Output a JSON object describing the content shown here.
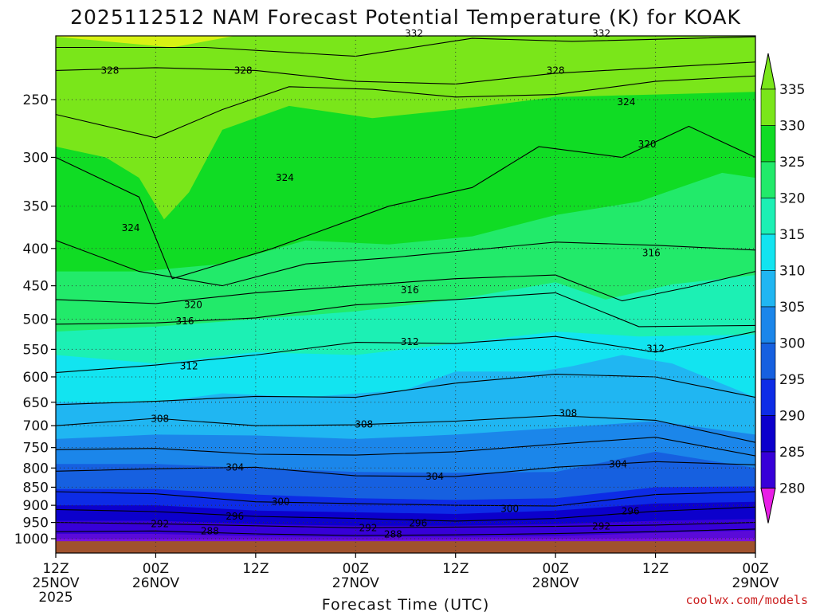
{
  "title": "2025112512 NAM Forecast Potential Temperature (K) for KOAK",
  "credit": "coolwx.com/models",
  "chart_data": {
    "type": "heatmap",
    "title": "2025112512 NAM Forecast Potential Temperature (K) for KOAK",
    "xlabel": "Forecast Time (UTC)",
    "ylabel": "",
    "x_ticks": [
      {
        "h": 0,
        "lines": [
          "12Z",
          "25NOV",
          "2025"
        ]
      },
      {
        "h": 12,
        "lines": [
          "00Z",
          "26NOV"
        ]
      },
      {
        "h": 24,
        "lines": [
          "12Z"
        ]
      },
      {
        "h": 36,
        "lines": [
          "00Z",
          "27NOV"
        ]
      },
      {
        "h": 48,
        "lines": [
          "12Z"
        ]
      },
      {
        "h": 60,
        "lines": [
          "00Z",
          "28NOV"
        ]
      },
      {
        "h": 72,
        "lines": [
          "12Z"
        ]
      },
      {
        "h": 84,
        "lines": [
          "00Z",
          "29NOV"
        ]
      }
    ],
    "xlim": [
      0,
      84
    ],
    "y_ticks": [
      250,
      300,
      350,
      400,
      450,
      500,
      550,
      600,
      650,
      700,
      750,
      800,
      850,
      900,
      950,
      1000
    ],
    "ylim_hpa": [
      1020,
      200
    ],
    "colorbar": {
      "ticks": [
        280,
        285,
        290,
        295,
        300,
        305,
        310,
        315,
        320,
        325,
        330,
        335
      ],
      "colors": [
        "#9b1ee6",
        "#7a12e0",
        "#5a0ad8",
        "#3700d8",
        "#0c00cc",
        "#0d2ce6",
        "#1660e0",
        "#1b86ea",
        "#20b6f2",
        "#12e4f0",
        "#1cf0b4",
        "#22ea6a",
        "#10dc24",
        "#7ae61a",
        "#d8f214"
      ]
    },
    "contour_labels": [
      {
        "h": 6.5,
        "p": 228,
        "v": "328"
      },
      {
        "h": 22.5,
        "p": 228,
        "v": "328"
      },
      {
        "h": 43,
        "p": 203,
        "v": "332"
      },
      {
        "h": 60,
        "p": 228,
        "v": "328"
      },
      {
        "h": 65.5,
        "p": 203,
        "v": "332"
      },
      {
        "h": 68.5,
        "p": 252,
        "v": "324"
      },
      {
        "h": 71,
        "p": 288,
        "v": "320"
      },
      {
        "h": 27.5,
        "p": 320,
        "v": "324"
      },
      {
        "h": 9,
        "p": 375,
        "v": "324"
      },
      {
        "h": 71.5,
        "p": 406,
        "v": "316"
      },
      {
        "h": 42.5,
        "p": 456,
        "v": "316"
      },
      {
        "h": 16.5,
        "p": 478,
        "v": "320"
      },
      {
        "h": 15.5,
        "p": 503,
        "v": "316"
      },
      {
        "h": 42.5,
        "p": 537,
        "v": "312"
      },
      {
        "h": 16,
        "p": 580,
        "v": "312"
      },
      {
        "h": 72,
        "p": 549,
        "v": "312"
      },
      {
        "h": 12.5,
        "p": 685,
        "v": "308"
      },
      {
        "h": 37,
        "p": 697,
        "v": "308"
      },
      {
        "h": 61.5,
        "p": 673,
        "v": "308"
      },
      {
        "h": 21.5,
        "p": 798,
        "v": "304"
      },
      {
        "h": 45.5,
        "p": 822,
        "v": "304"
      },
      {
        "h": 67.5,
        "p": 790,
        "v": "304"
      },
      {
        "h": 27,
        "p": 890,
        "v": "300"
      },
      {
        "h": 54.5,
        "p": 910,
        "v": "300"
      },
      {
        "h": 21.5,
        "p": 932,
        "v": "296"
      },
      {
        "h": 43.5,
        "p": 952,
        "v": "296"
      },
      {
        "h": 69,
        "p": 917,
        "v": "296"
      },
      {
        "h": 12.5,
        "p": 954,
        "v": "292"
      },
      {
        "h": 37.5,
        "p": 966,
        "v": "292"
      },
      {
        "h": 65.5,
        "p": 962,
        "v": "292"
      },
      {
        "h": 18.5,
        "p": 976,
        "v": "288"
      },
      {
        "h": 40.5,
        "p": 986,
        "v": "288"
      }
    ]
  }
}
